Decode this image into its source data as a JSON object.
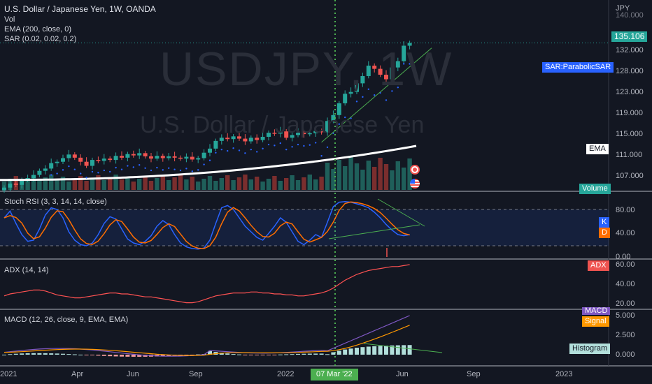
{
  "header": {
    "title": "U.S. Dollar / Japanese Yen, 1W, OANDA",
    "indicators": [
      "Vol",
      "EMA (200, close, 0)",
      "SAR (0.02, 0.02, 0.2)"
    ]
  },
  "watermark": {
    "symbol": "USDJPY, 1W",
    "name": "U.S. Dollar / Japanese Yen"
  },
  "price_axis": {
    "currency": "JPY",
    "labels": [
      "140.000",
      "132.000",
      "128.000",
      "123.000",
      "119.000",
      "115.000",
      "111.000",
      "107.000"
    ],
    "current_price": "135.106"
  },
  "tags": {
    "sar": "SAR:ParabolicSAR",
    "ema": "EMA",
    "volume": "Volume"
  },
  "panes": {
    "stoch": {
      "title": "Stoch RSI (3, 3, 14, 14, close)",
      "labels": [
        "80.00",
        "40.00",
        "0.00"
      ],
      "k": "K",
      "d": "D"
    },
    "adx": {
      "title": "ADX (14, 14)",
      "labels": [
        "60.00",
        "40.00",
        "20.00"
      ],
      "tag": "ADX"
    },
    "macd": {
      "title": "MACD (12, 26, close, 9, EMA, EMA)",
      "labels": [
        "5.000",
        "2.500",
        "0.000"
      ],
      "macd_tag": "MACD",
      "signal_tag": "Signal",
      "hist_tag": "Histogram"
    }
  },
  "time_axis": {
    "labels": [
      "2021",
      "Apr",
      "Jun",
      "Sep",
      "2022",
      "Jun",
      "Sep",
      "2023"
    ],
    "crosshair_label": "07 Mar '22"
  },
  "colors": {
    "background": "#131722",
    "up": "#26a69a",
    "down": "#ef5350",
    "ema": "#ffffff",
    "sar": "#2962ff",
    "stoch_k": "#2962ff",
    "stoch_d": "#ff6d00",
    "adx": "#ff5252",
    "macd": "#7e57c2",
    "signal": "#ff9800",
    "crosshair": "#4caf50"
  },
  "chart_data": {
    "type": "candlestick",
    "weekly_closes": [
      103.2,
      104.1,
      103.8,
      104.9,
      105.3,
      106.0,
      106.9,
      107.4,
      108.6,
      108.9,
      109.7,
      110.5,
      109.8,
      108.9,
      108.0,
      109.3,
      109.1,
      109.6,
      109.3,
      110.2,
      109.8,
      110.6,
      110.3,
      110.8,
      110.1,
      109.6,
      110.2,
      109.7,
      110.1,
      109.8,
      109.6,
      110.0,
      109.4,
      109.7,
      110.9,
      111.8,
      113.5,
      114.2,
      113.9,
      114.5,
      114.0,
      113.4,
      114.2,
      113.7,
      114.4,
      115.3,
      115.1,
      115.6,
      114.2,
      114.8,
      115.3,
      115.0,
      115.2,
      115.7,
      115.4,
      117.9,
      119.2,
      121.8,
      123.9,
      124.3,
      126.2,
      127.8,
      130.1,
      129.4,
      128.1,
      127.1,
      129.7,
      131.1,
      134.5,
      135.1
    ],
    "current_price": 135.106,
    "ema200_range": [
      104.9,
      112.4
    ],
    "stoch_rsi_latest": {
      "k": 46,
      "d": 45
    },
    "adx_latest": 60,
    "macd_latest": {
      "macd": 5.0,
      "signal": 4.4
    }
  }
}
